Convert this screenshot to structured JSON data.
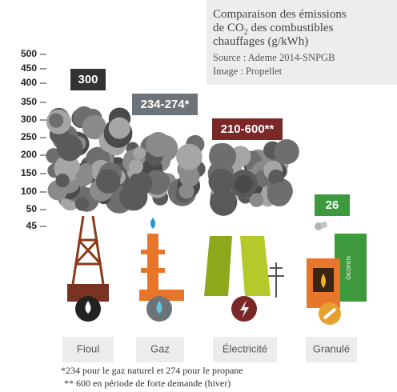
{
  "title": {
    "line1": "Comparaison des émissions",
    "line2_pre": "de CO",
    "line2_sub": "2",
    "line2_post": " des combustibles",
    "line3": "chauffages (g/kWh)"
  },
  "source": [
    "Source : Ademe 2014-SNPGB",
    "Image : Propellet"
  ],
  "axis_labels": [
    "500",
    "450",
    "400",
    "350",
    "300",
    "250",
    "200",
    "150",
    "100",
    "50",
    "45"
  ],
  "fuels": [
    {
      "name": "Fioul",
      "value_label": "300"
    },
    {
      "name": "Gaz",
      "value_label": "234-274*"
    },
    {
      "name": "Électricité",
      "value_label": "210-600**"
    },
    {
      "name": "Granulé",
      "value_label": "26"
    }
  ],
  "brand": "ÖKOFEN",
  "notes": [
    "*234 pour le gaz naturel et 274 pour le propane",
    "** 600 en période de forte demande (hiver)"
  ]
}
